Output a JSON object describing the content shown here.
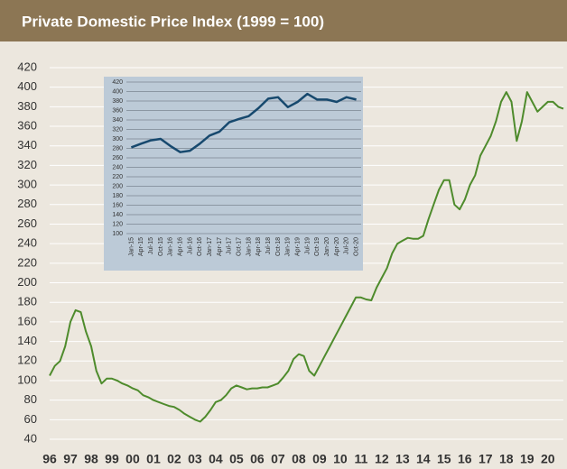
{
  "chart_data": [
    {
      "type": "line",
      "title": "Private Domestic Price Index (1999 = 100)",
      "xlim": [
        1996,
        2020.75
      ],
      "xticks": [
        {
          "value": 1996,
          "label": "96"
        },
        {
          "value": 1997,
          "label": "97"
        },
        {
          "value": 1998,
          "label": "98"
        },
        {
          "value": 1999,
          "label": "99"
        },
        {
          "value": 2000,
          "label": "00"
        },
        {
          "value": 2001,
          "label": "01"
        },
        {
          "value": 2002,
          "label": "02"
        },
        {
          "value": 2003,
          "label": "03"
        },
        {
          "value": 2004,
          "label": "04"
        },
        {
          "value": 2005,
          "label": "05"
        },
        {
          "value": 2006,
          "label": "06"
        },
        {
          "value": 2007,
          "label": "07"
        },
        {
          "value": 2008,
          "label": "08"
        },
        {
          "value": 2009,
          "label": "09"
        },
        {
          "value": 2010,
          "label": "10"
        },
        {
          "value": 2011,
          "label": "11"
        },
        {
          "value": 2012,
          "label": "12"
        },
        {
          "value": 2013,
          "label": "13"
        },
        {
          "value": 2014,
          "label": "14"
        },
        {
          "value": 2015,
          "label": "15"
        },
        {
          "value": 2016,
          "label": "16"
        },
        {
          "value": 2017,
          "label": "17"
        },
        {
          "value": 2018,
          "label": "18"
        },
        {
          "value": 2019,
          "label": "19"
        },
        {
          "value": 2020,
          "label": "20"
        }
      ],
      "ylim": [
        40,
        420
      ],
      "yticks": [
        40,
        60,
        80,
        100,
        120,
        140,
        160,
        180,
        200,
        220,
        240,
        260,
        280,
        300,
        320,
        340,
        360,
        380,
        400,
        420
      ],
      "grid": true,
      "x": [
        1996,
        1996.25,
        1996.5,
        1996.75,
        1997,
        1997.25,
        1997.5,
        1997.75,
        1998,
        1998.25,
        1998.5,
        1998.75,
        1999,
        1999.25,
        1999.5,
        1999.75,
        2000,
        2000.25,
        2000.5,
        2000.75,
        2001,
        2001.25,
        2001.5,
        2001.75,
        2002,
        2002.25,
        2002.5,
        2002.75,
        2003,
        2003.25,
        2003.5,
        2003.75,
        2004,
        2004.25,
        2004.5,
        2004.75,
        2005,
        2005.25,
        2005.5,
        2005.75,
        2006,
        2006.25,
        2006.5,
        2006.75,
        2007,
        2007.25,
        2007.5,
        2007.75,
        2008,
        2008.25,
        2008.5,
        2008.75,
        2009,
        2009.25,
        2009.5,
        2009.75,
        2010,
        2010.25,
        2010.5,
        2010.75,
        2011,
        2011.25,
        2011.5,
        2011.75,
        2012,
        2012.25,
        2012.5,
        2012.75,
        2013,
        2013.25,
        2013.5,
        2013.75,
        2014,
        2014.25,
        2014.5,
        2014.75,
        2015,
        2015.25,
        2015.5,
        2015.75,
        2016,
        2016.25,
        2016.5,
        2016.75,
        2017,
        2017.25,
        2017.5,
        2017.75,
        2018,
        2018.25,
        2018.5,
        2018.75,
        2019,
        2019.25,
        2019.5,
        2019.75,
        2020,
        2020.25,
        2020.5,
        2020.75
      ],
      "series": [
        {
          "color": "#4e8b2c",
          "values": [
            105,
            115,
            120,
            135,
            160,
            172,
            170,
            150,
            135,
            110,
            97,
            102,
            102,
            100,
            97,
            95,
            92,
            90,
            85,
            83,
            80,
            78,
            76,
            74,
            73,
            70,
            66,
            63,
            60,
            58,
            63,
            70,
            78,
            80,
            85,
            92,
            95,
            93,
            91,
            92,
            92,
            93,
            93,
            95,
            97,
            103,
            110,
            122,
            127,
            125,
            110,
            105,
            115,
            125,
            135,
            145,
            155,
            165,
            175,
            185,
            185,
            183,
            182,
            195,
            205,
            215,
            230,
            240,
            243,
            246,
            245,
            245,
            248,
            265,
            280,
            295,
            305,
            305,
            280,
            275,
            285,
            300,
            310,
            330,
            340,
            350,
            365,
            385,
            395,
            385,
            345,
            365,
            395,
            385,
            375,
            380,
            385,
            385,
            380,
            378
          ]
        }
      ]
    },
    {
      "type": "line",
      "categories": [
        "Jan-15",
        "Apr-15",
        "Jul-15",
        "Oct-15",
        "Jan-16",
        "Apr-16",
        "Jul-16",
        "Oct-16",
        "Jan-17",
        "Apr-17",
        "Jul-17",
        "Oct-17",
        "Jan-18",
        "Apr-18",
        "Jul-18",
        "Oct-18",
        "Jan-19",
        "Apr-19",
        "Jul-19",
        "Oct-19",
        "Jan-20",
        "Apr-20",
        "Jul-20",
        "Oct-20"
      ],
      "ylim": [
        100,
        420
      ],
      "yticks": [
        100,
        120,
        140,
        160,
        180,
        200,
        220,
        240,
        260,
        280,
        300,
        320,
        340,
        360,
        380,
        400,
        420
      ],
      "grid": true,
      "series": [
        {
          "color": "#17496e",
          "values": [
            282,
            290,
            297,
            300,
            285,
            272,
            275,
            290,
            307,
            315,
            335,
            342,
            348,
            365,
            385,
            388,
            367,
            378,
            395,
            383,
            383,
            378,
            388,
            383
          ]
        }
      ]
    }
  ]
}
